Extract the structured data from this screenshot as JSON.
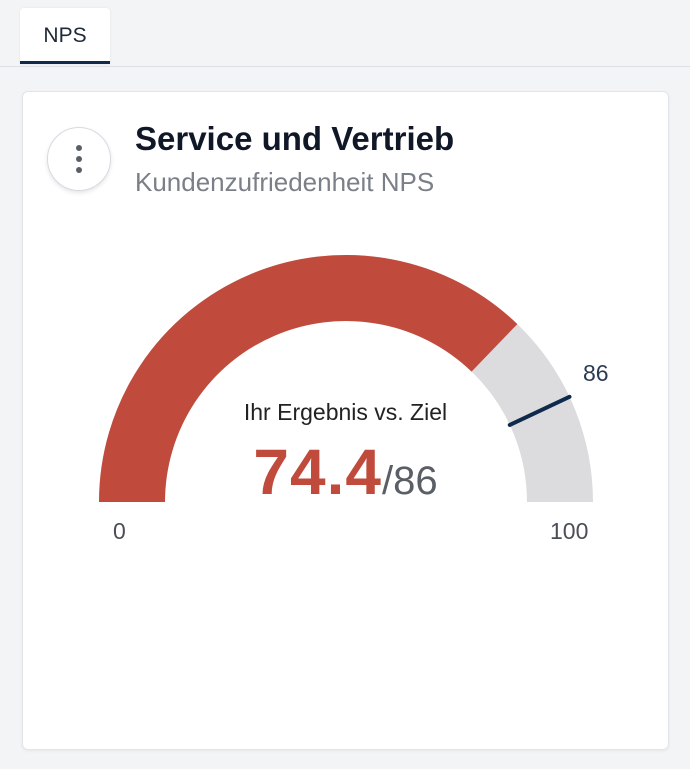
{
  "tabs": [
    {
      "label": "NPS",
      "active": true
    }
  ],
  "card": {
    "title": "Service und Vertrieb",
    "subtitle": "Kundenzufriedenheit NPS",
    "menu_icon": "more-vertical-icon"
  },
  "gauge": {
    "center_label": "Ihr Ergebnis vs. Ziel",
    "value": 74.4,
    "value_text": "74.4",
    "target": 86,
    "target_text": "/86",
    "target_label": "86",
    "min": 0,
    "max": 100,
    "min_label": "0",
    "max_label": "100",
    "colors": {
      "value_arc": "#c04a3b",
      "track": "#dcdcdf",
      "target_marker": "#0f2a4a"
    }
  }
}
